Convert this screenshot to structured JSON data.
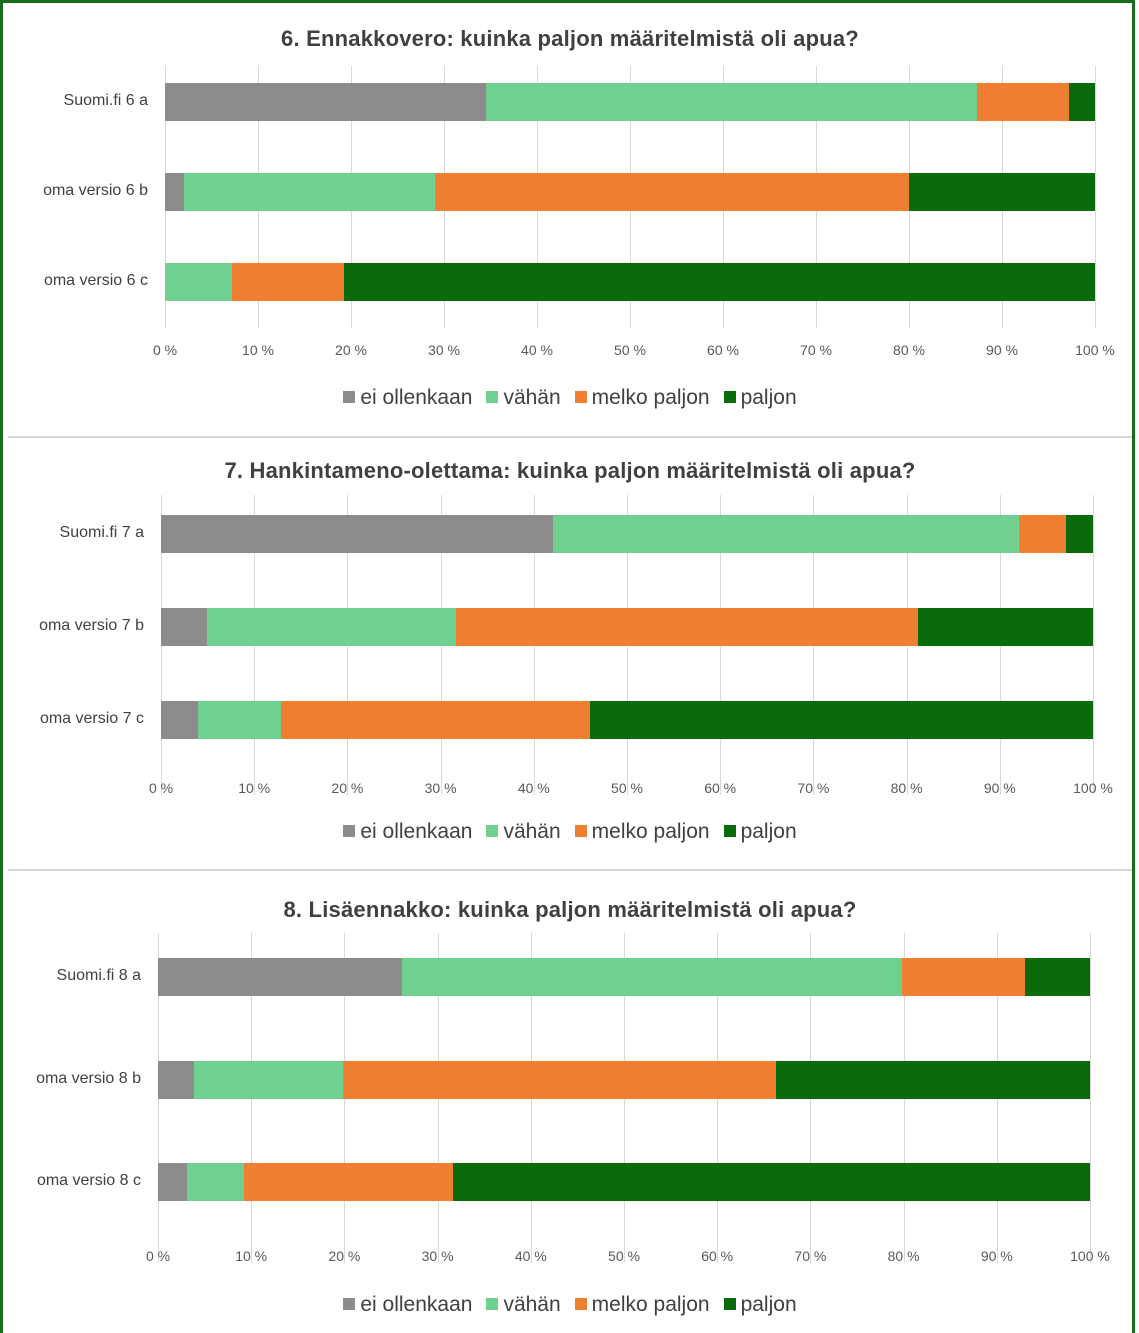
{
  "chart_data": [
    {
      "type": "bar",
      "orientation": "horizontal",
      "stacked": "percent",
      "title": "6. Ennakkovero:  kuinka paljon määritelmistä oli apua?",
      "categories": [
        "Suomi.fi 6 a",
        "oma versio 6 b",
        "oma versio 6 c"
      ],
      "series": [
        {
          "name": "ei ollenkaan",
          "color": "#8c8c8c",
          "values": [
            34.5,
            2,
            0
          ]
        },
        {
          "name": "vähän",
          "color": "#6fd08f",
          "values": [
            52.8,
            27,
            7.2
          ]
        },
        {
          "name": "melko paljon",
          "color": "#f07f32",
          "values": [
            9.9,
            51,
            12.1
          ]
        },
        {
          "name": "paljon",
          "color": "#0a6b0a",
          "values": [
            2.8,
            20,
            80.7
          ]
        }
      ],
      "x_ticks": [
        "0 %",
        "10 %",
        "20 %",
        "30 %",
        "40 %",
        "50 %",
        "60 %",
        "70 %",
        "80 %",
        "90 %",
        "100 %"
      ],
      "xlim": [
        0,
        100
      ],
      "grid": true,
      "legend_position": "bottom"
    },
    {
      "type": "bar",
      "orientation": "horizontal",
      "stacked": "percent",
      "title": "7. Hankintameno-olettama:  kuinka paljon määritelmistä oli apua?",
      "categories": [
        "Suomi.fi 7 a",
        "oma versio 7 b",
        "oma versio 7 c"
      ],
      "series": [
        {
          "name": "ei ollenkaan",
          "color": "#8c8c8c",
          "values": [
            42.1,
            4.9,
            4
          ]
        },
        {
          "name": "vähän",
          "color": "#6fd08f",
          "values": [
            50,
            26.7,
            8.9
          ]
        },
        {
          "name": "melko paljon",
          "color": "#f07f32",
          "values": [
            5,
            49.6,
            33.1
          ]
        },
        {
          "name": "paljon",
          "color": "#0a6b0a",
          "values": [
            2.9,
            18.8,
            54
          ]
        }
      ],
      "x_ticks": [
        "0 %",
        "10 %",
        "20 %",
        "30 %",
        "40 %",
        "50 %",
        "60 %",
        "70 %",
        "80 %",
        "90 %",
        "100 %"
      ],
      "xlim": [
        0,
        100
      ],
      "grid": true,
      "legend_position": "bottom"
    },
    {
      "type": "bar",
      "orientation": "horizontal",
      "stacked": "percent",
      "title": "8. Lisäennakko:  kuinka paljon määritelmistä oli apua?",
      "categories": [
        "Suomi.fi 8 a",
        "oma versio 8 b",
        "oma versio 8 c"
      ],
      "series": [
        {
          "name": "ei ollenkaan",
          "color": "#8c8c8c",
          "values": [
            26.2,
            3.9,
            3.1
          ]
        },
        {
          "name": "vähän",
          "color": "#6fd08f",
          "values": [
            53.6,
            15.9,
            6.1
          ]
        },
        {
          "name": "melko paljon",
          "color": "#f07f32",
          "values": [
            13.2,
            46.5,
            22.4
          ]
        },
        {
          "name": "paljon",
          "color": "#0a6b0a",
          "values": [
            7,
            33.7,
            68.4
          ]
        }
      ],
      "x_ticks": [
        "0 %",
        "10 %",
        "20 %",
        "30 %",
        "40 %",
        "50 %",
        "60 %",
        "70 %",
        "80 %",
        "90 %",
        "100 %"
      ],
      "xlim": [
        0,
        100
      ],
      "grid": true,
      "legend_position": "bottom"
    }
  ]
}
